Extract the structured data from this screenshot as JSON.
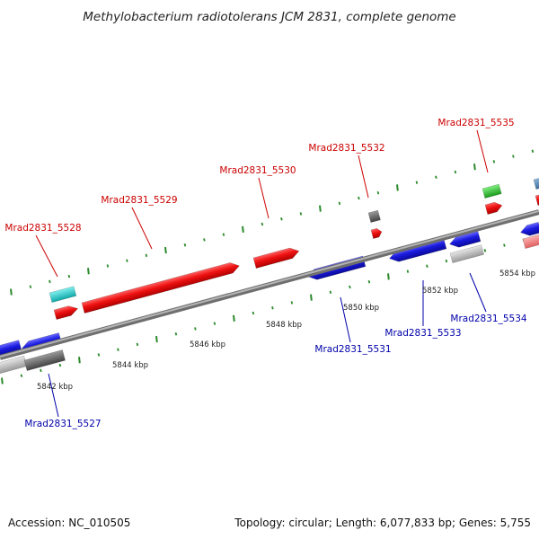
{
  "title": "Methylobacterium radiotolerans JCM 2831, complete genome",
  "footer": {
    "accession": "Accession: NC_010505",
    "summary": "Topology: circular; Length: 6,077,833 bp; Genes: 5,755"
  },
  "colors": {
    "forward_label": "#cc0000",
    "reverse_label": "#0000aa",
    "forward_gene": "#ee1111",
    "reverse_gene": "#1a1adf",
    "tick": "#2b8a2b",
    "backbone": "#8c8c8c"
  },
  "kbp_labels": [
    "5842 kbp",
    "5844 kbp",
    "5846 kbp",
    "5848 kbp",
    "5850 kbp",
    "5852 kbp",
    "5854 kbp"
  ],
  "forward_genes": [
    {
      "label": "Mrad2831_5528"
    },
    {
      "label": "Mrad2831_5529"
    },
    {
      "label": "Mrad2831_5530"
    },
    {
      "label": "Mrad2831_5532"
    },
    {
      "label": "Mrad2831_5535"
    }
  ],
  "reverse_genes": [
    {
      "label": "Mrad2831_5527"
    },
    {
      "label": "Mrad2831_5531"
    },
    {
      "label": "Mrad2831_5533"
    },
    {
      "label": "Mrad2831_5534"
    }
  ]
}
